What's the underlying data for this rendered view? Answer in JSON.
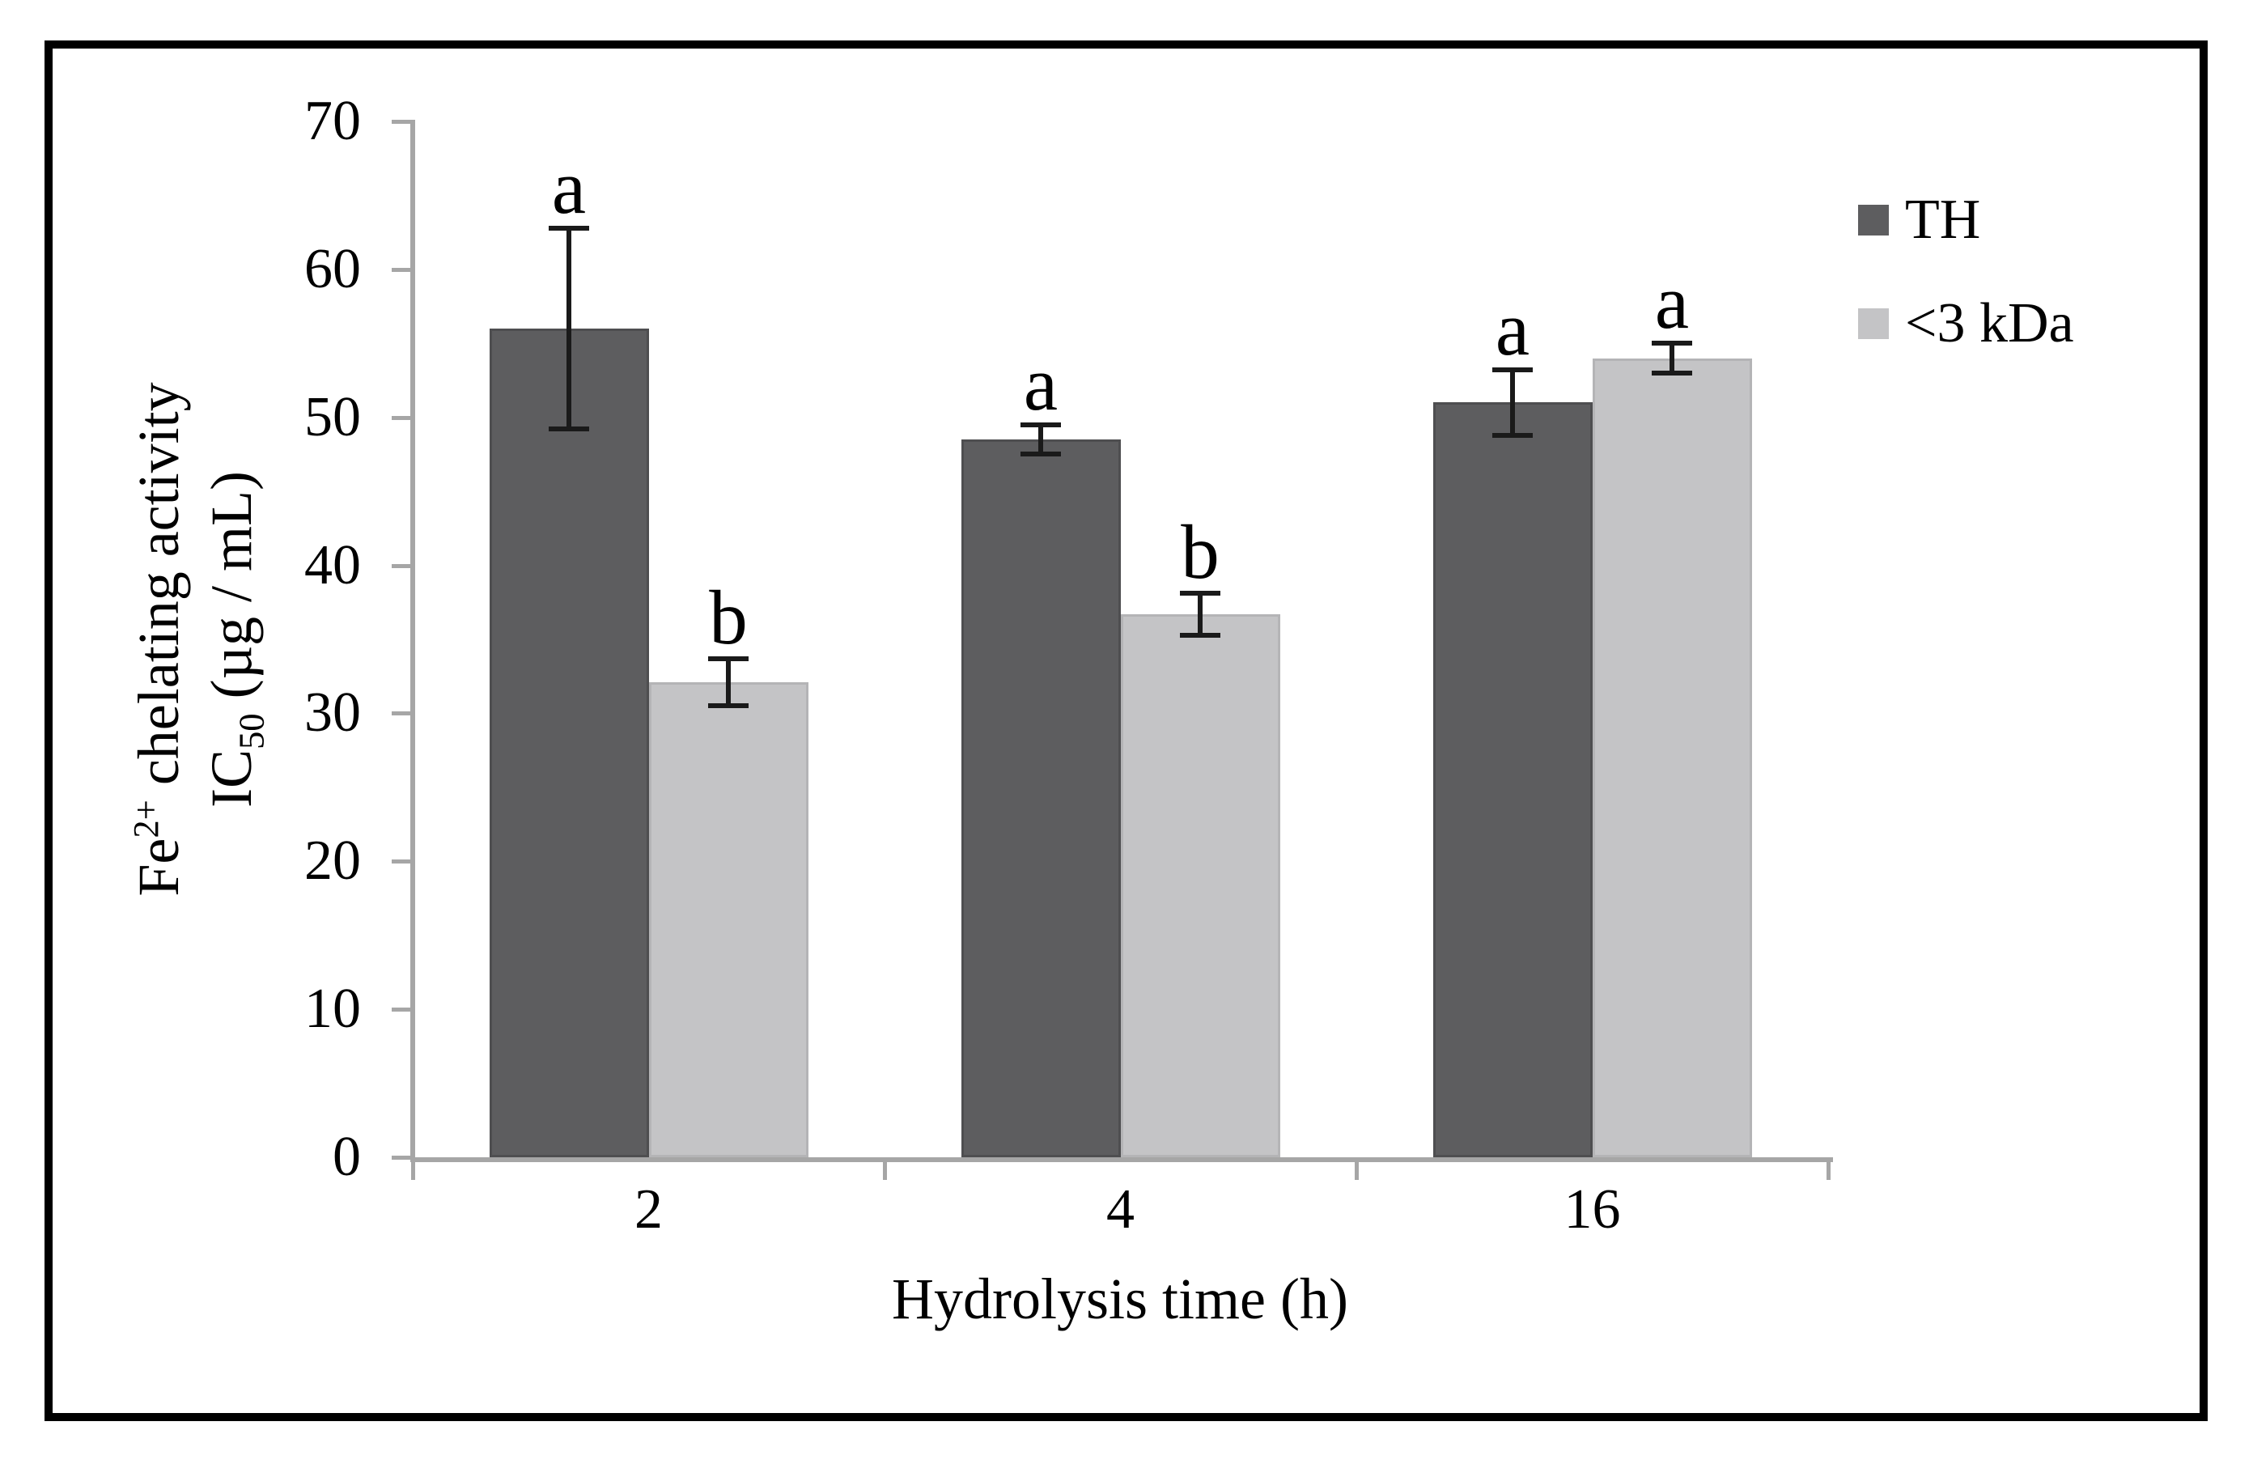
{
  "chart_data": {
    "type": "bar",
    "title": "",
    "xlabel": "Hydrolysis time (h)",
    "ylabel": {
      "line1_pre": "Fe",
      "line1_sup": "2+",
      "line1_rest": " chelating activity",
      "line2_pre": "IC",
      "line2_sub": "50",
      "line2_rest": " (µg / mL)"
    },
    "categories": [
      "2",
      "4",
      "16"
    ],
    "yticks": [
      "0",
      "10",
      "20",
      "30",
      "40",
      "50",
      "60",
      "70"
    ],
    "ylim": [
      0,
      70
    ],
    "ytick_step": 10,
    "grid": "off",
    "legend_position": "right",
    "series": [
      {
        "name": "TH",
        "color": "#5d5d5f",
        "edge_color": "#4e4e50",
        "values": [
          56.0,
          48.5,
          51.0
        ],
        "errors": [
          6.8,
          1.0,
          2.2
        ],
        "letters": [
          "a",
          "a",
          "a"
        ]
      },
      {
        "name": "<3 kDa",
        "color": "#c4c4c6",
        "edge_color": "#b4b4b6",
        "values": [
          32.1,
          36.7,
          54.0
        ],
        "errors": [
          1.6,
          1.4,
          1.0
        ],
        "letters": [
          "b",
          "b",
          "a"
        ]
      }
    ],
    "axis_color": "#a6a6a6",
    "error_bar_color": "#1a1a1a",
    "text_color": "#000000",
    "frame_color": "#000000"
  }
}
